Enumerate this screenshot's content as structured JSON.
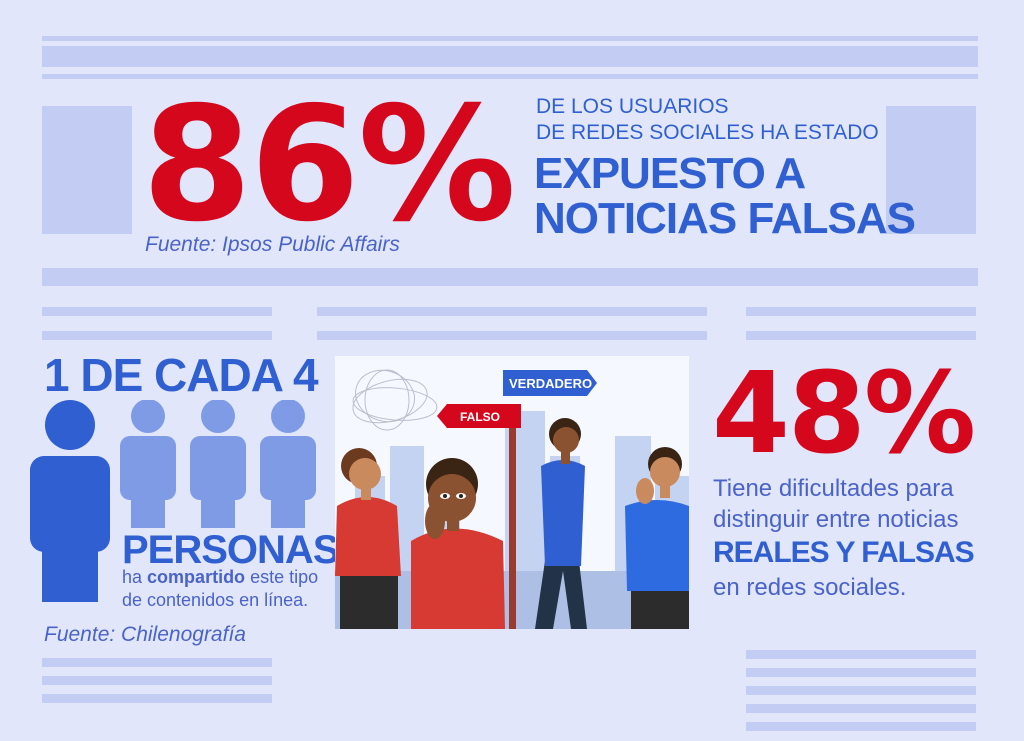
{
  "stat1": {
    "percent": "86%",
    "line1": "DE LOS USUARIOS",
    "line2": "DE REDES SOCIALES HA ESTADO",
    "highlight1": "EXPUESTO A",
    "highlight2": "NOTICIAS FALSAS",
    "source": "Fuente: Ipsos Public Affairs"
  },
  "stat2": {
    "ratio": "1 DE CADA 4",
    "highlighted_people": 1,
    "total_people": 4,
    "label": "PERSONAS",
    "desc_pre": "ha",
    "desc_bold": "compartido",
    "desc_post": "este tipo",
    "desc_line2": "de contenidos en línea.",
    "source": "Fuente: Chilenografía"
  },
  "stat3": {
    "percent": "48%",
    "line1": "Tiene dificultades para",
    "line2": "distinguir entre noticias",
    "highlight": "REALES Y FALSAS",
    "line3": "en redes sociales."
  },
  "illustration": {
    "sign_true": "VERDADERO",
    "sign_false": "FALSO"
  },
  "colors": {
    "background": "#e1e6fb",
    "red": "#d4071c",
    "blue": "#2f5fd0",
    "light_blue": "#7f9be6",
    "decor_bar": "#c3cdf3"
  }
}
